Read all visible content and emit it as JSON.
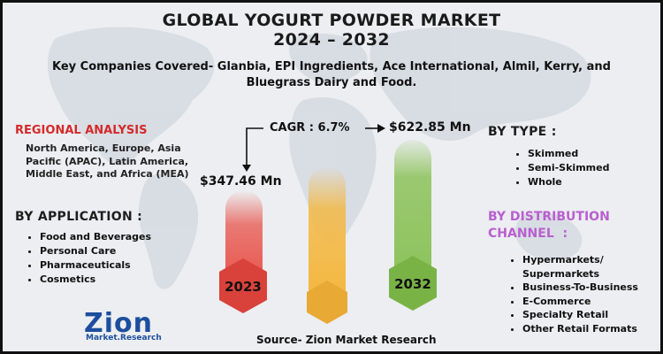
{
  "title_line1": "GLOBAL YOGURT POWDER MARKET",
  "title_line2": "2024 – 2032",
  "subtitle": "Key Companies Covered- Glanbia, EPI Ingredients, Ace International, Almil, Kerry, and Bluegrass Dairy and Food.",
  "regional": {
    "heading": "REGIONAL ANALYSIS",
    "text": "North America, Europe, Asia Pacific (APAC), Latin America, Middle East, and Africa (MEA)"
  },
  "application": {
    "heading": "BY APPLICATION :",
    "items": [
      "Food and Beverages",
      "Personal Care",
      "Pharmaceuticals",
      "Cosmetics"
    ]
  },
  "type": {
    "heading": "BY TYPE :",
    "items": [
      "Skimmed",
      "Semi-Skimmed",
      "Whole"
    ]
  },
  "distribution": {
    "heading_line1": "BY DISTRIBUTION",
    "heading_line2": "CHANNEL  :",
    "items": [
      "Hypermarkets/ Supermarkets",
      "Business-To-Business",
      "E-Commerce",
      "Specialty Retail",
      "Other Retail Formats"
    ]
  },
  "cagr": "CAGR : 6.7%",
  "value_2023": "$347.46 Mn",
  "value_2032": "$622.85 Mn",
  "year_2023": "2023",
  "year_2032": "2032",
  "source": "Source- Zion Market Research",
  "logo": {
    "name": "Zion",
    "sub": "Market.Research"
  },
  "colors": {
    "bar_2023": "#e8534a",
    "bar_mid": "#f4b63c",
    "bar_2032": "#8cc25a",
    "hex_2023": "#d9423b",
    "hex_2032": "#79b346",
    "regional_heading": "#d42a2a",
    "distribution_heading": "#b95fcf",
    "logo": "#1d4e9e"
  }
}
